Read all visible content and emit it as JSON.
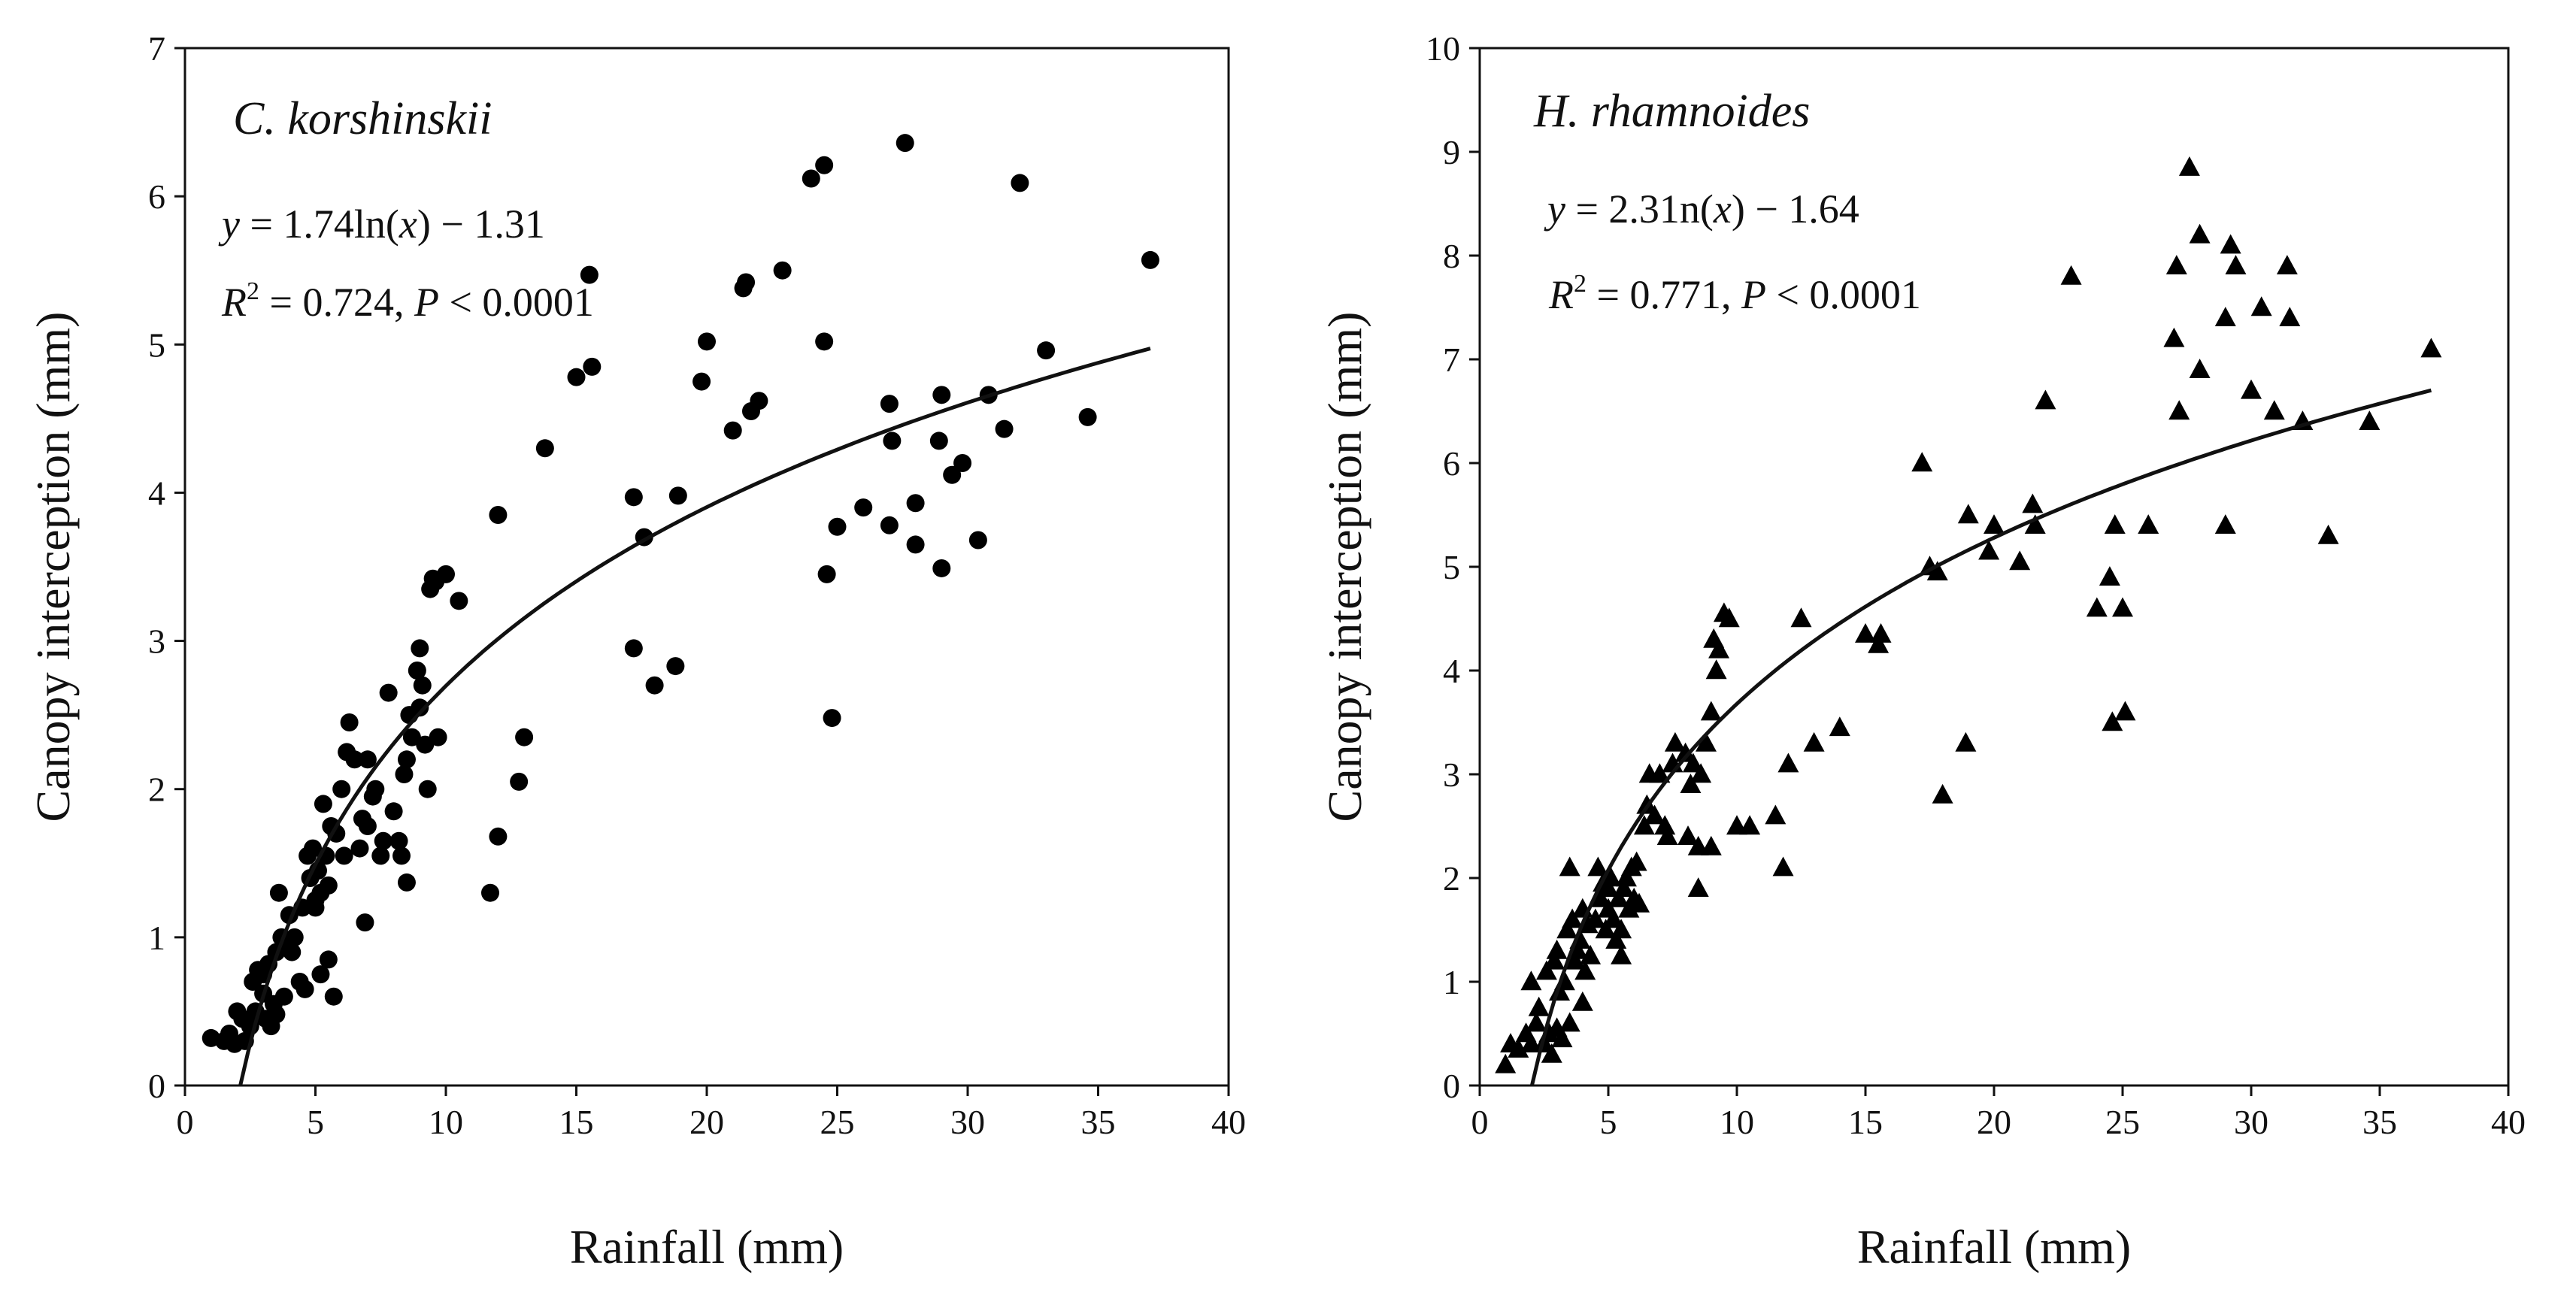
{
  "chart_data": [
    {
      "type": "scatter",
      "species": "C. korshinskii",
      "xlabel": "Rainfall (mm)",
      "ylabel": "Canopy interception (mm)",
      "xlim": [
        0,
        40
      ],
      "ylim": [
        0,
        7
      ],
      "xticks": [
        0,
        5,
        10,
        15,
        20,
        25,
        30,
        35,
        40
      ],
      "yticks": [
        0,
        1,
        2,
        3,
        4,
        5,
        6,
        7
      ],
      "marker": "circle",
      "equation": {
        "y": "y",
        "eq": "= 1.74ln(",
        "x": "x",
        "rest": ") − 1.31"
      },
      "stats": {
        "r": "R",
        "sup": "2",
        "val": " = 0.724, ",
        "p": "P",
        "pval": " < 0.0001"
      },
      "fit": {
        "a": 1.74,
        "b": -1.31,
        "xmin": 2.12,
        "xmax": 37
      },
      "points": [
        [
          1.0,
          0.32
        ],
        [
          1.5,
          0.3
        ],
        [
          1.7,
          0.35
        ],
        [
          1.9,
          0.28
        ],
        [
          2.0,
          0.5
        ],
        [
          2.2,
          0.45
        ],
        [
          2.3,
          0.3
        ],
        [
          2.5,
          0.4
        ],
        [
          2.6,
          0.7
        ],
        [
          2.7,
          0.5
        ],
        [
          2.8,
          0.78
        ],
        [
          3.0,
          0.62
        ],
        [
          3.0,
          0.75
        ],
        [
          3.1,
          0.45
        ],
        [
          3.2,
          0.82
        ],
        [
          3.3,
          0.4
        ],
        [
          3.4,
          0.55
        ],
        [
          3.5,
          0.9
        ],
        [
          3.5,
          0.48
        ],
        [
          3.6,
          1.3
        ],
        [
          3.7,
          1.0
        ],
        [
          3.8,
          0.6
        ],
        [
          3.9,
          0.95
        ],
        [
          4.0,
          1.15
        ],
        [
          4.1,
          0.9
        ],
        [
          4.2,
          1.0
        ],
        [
          4.4,
          0.7
        ],
        [
          4.5,
          1.2
        ],
        [
          4.6,
          0.65
        ],
        [
          4.7,
          1.55
        ],
        [
          4.8,
          1.4
        ],
        [
          4.9,
          1.6
        ],
        [
          5.0,
          1.25
        ],
        [
          5.0,
          1.2
        ],
        [
          5.1,
          1.45
        ],
        [
          5.2,
          0.75
        ],
        [
          5.2,
          1.3
        ],
        [
          5.3,
          1.9
        ],
        [
          5.4,
          1.55
        ],
        [
          5.5,
          0.85
        ],
        [
          5.5,
          1.35
        ],
        [
          5.6,
          1.75
        ],
        [
          5.7,
          0.6
        ],
        [
          5.8,
          1.7
        ],
        [
          6.0,
          2.0
        ],
        [
          6.1,
          1.55
        ],
        [
          6.2,
          2.25
        ],
        [
          6.3,
          2.45
        ],
        [
          6.5,
          2.2
        ],
        [
          6.7,
          1.6
        ],
        [
          6.8,
          1.8
        ],
        [
          6.9,
          1.1
        ],
        [
          7.0,
          2.2
        ],
        [
          7.0,
          1.75
        ],
        [
          7.2,
          1.95
        ],
        [
          7.3,
          2.0
        ],
        [
          7.5,
          1.55
        ],
        [
          7.6,
          1.65
        ],
        [
          7.8,
          2.65
        ],
        [
          8.0,
          1.85
        ],
        [
          8.2,
          1.65
        ],
        [
          8.3,
          1.55
        ],
        [
          8.4,
          2.1
        ],
        [
          8.5,
          1.37
        ],
        [
          8.5,
          2.2
        ],
        [
          8.6,
          2.5
        ],
        [
          8.7,
          2.35
        ],
        [
          8.9,
          2.8
        ],
        [
          9.0,
          2.55
        ],
        [
          9.0,
          2.95
        ],
        [
          9.1,
          2.7
        ],
        [
          9.2,
          2.3
        ],
        [
          9.3,
          2.0
        ],
        [
          9.4,
          3.35
        ],
        [
          9.5,
          3.42
        ],
        [
          9.6,
          3.4
        ],
        [
          9.7,
          2.35
        ],
        [
          10.0,
          3.45
        ],
        [
          10.5,
          3.27
        ],
        [
          11.7,
          1.3
        ],
        [
          12.0,
          1.68
        ],
        [
          12.0,
          3.85
        ],
        [
          12.8,
          2.05
        ],
        [
          13.0,
          2.35
        ],
        [
          13.8,
          4.3
        ],
        [
          15.0,
          4.78
        ],
        [
          15.5,
          5.47
        ],
        [
          15.6,
          4.85
        ],
        [
          17.2,
          2.95
        ],
        [
          17.2,
          3.97
        ],
        [
          17.6,
          3.7
        ],
        [
          18.0,
          2.7
        ],
        [
          18.8,
          2.83
        ],
        [
          18.9,
          3.98
        ],
        [
          19.8,
          4.75
        ],
        [
          20.0,
          5.02
        ],
        [
          21.0,
          4.42
        ],
        [
          21.4,
          5.38
        ],
        [
          21.5,
          5.42
        ],
        [
          21.7,
          4.55
        ],
        [
          22.0,
          4.62
        ],
        [
          22.9,
          5.5
        ],
        [
          24.0,
          6.12
        ],
        [
          24.5,
          6.21
        ],
        [
          24.5,
          5.02
        ],
        [
          24.6,
          3.45
        ],
        [
          24.8,
          2.48
        ],
        [
          25.0,
          3.77
        ],
        [
          26.0,
          3.9
        ],
        [
          27.0,
          3.78
        ],
        [
          27.0,
          4.6
        ],
        [
          27.1,
          4.35
        ],
        [
          27.6,
          6.36
        ],
        [
          28.0,
          3.65
        ],
        [
          28.0,
          3.93
        ],
        [
          28.9,
          4.35
        ],
        [
          29.0,
          3.49
        ],
        [
          29.0,
          4.66
        ],
        [
          29.4,
          4.12
        ],
        [
          29.8,
          4.2
        ],
        [
          30.4,
          3.68
        ],
        [
          30.8,
          4.66
        ],
        [
          31.4,
          4.43
        ],
        [
          32.0,
          6.09
        ],
        [
          33.0,
          4.96
        ],
        [
          34.6,
          4.51
        ],
        [
          37.0,
          5.57
        ]
      ]
    },
    {
      "type": "scatter",
      "species": "H. rhamnoides",
      "xlabel": "Rainfall (mm)",
      "ylabel": "Canopy interception (mm)",
      "xlim": [
        0,
        40
      ],
      "ylim": [
        0,
        10
      ],
      "xticks": [
        0,
        5,
        10,
        15,
        20,
        25,
        30,
        35,
        40
      ],
      "yticks": [
        0,
        1,
        2,
        3,
        4,
        5,
        6,
        7,
        8,
        9,
        10
      ],
      "marker": "triangle",
      "equation": {
        "y": "y",
        "eq": "= 2.31n(",
        "x": "x",
        "rest": ") − 1.64"
      },
      "stats": {
        "r": "R",
        "sup": "2",
        "val": " = 0.771, ",
        "p": "P",
        "pval": " < 0.0001"
      },
      "fit": {
        "a": 2.31,
        "b": -1.64,
        "xmin": 2.03,
        "xmax": 37
      },
      "points": [
        [
          1.0,
          0.2
        ],
        [
          1.2,
          0.4
        ],
        [
          1.5,
          0.35
        ],
        [
          1.8,
          0.5
        ],
        [
          2.0,
          0.4
        ],
        [
          2.0,
          1.0
        ],
        [
          2.2,
          0.6
        ],
        [
          2.3,
          0.75
        ],
        [
          2.5,
          0.4
        ],
        [
          2.6,
          1.1
        ],
        [
          2.7,
          0.5
        ],
        [
          2.8,
          0.3
        ],
        [
          2.9,
          1.2
        ],
        [
          3.0,
          0.55
        ],
        [
          3.0,
          1.3
        ],
        [
          3.1,
          0.9
        ],
        [
          3.2,
          0.45
        ],
        [
          3.3,
          1.0
        ],
        [
          3.4,
          1.5
        ],
        [
          3.5,
          0.6
        ],
        [
          3.5,
          2.1
        ],
        [
          3.6,
          1.6
        ],
        [
          3.7,
          1.2
        ],
        [
          3.8,
          1.3
        ],
        [
          3.9,
          1.4
        ],
        [
          4.0,
          0.8
        ],
        [
          4.0,
          1.7
        ],
        [
          4.1,
          1.1
        ],
        [
          4.2,
          1.55
        ],
        [
          4.3,
          1.25
        ],
        [
          4.5,
          1.6
        ],
        [
          4.6,
          2.1
        ],
        [
          4.7,
          1.8
        ],
        [
          4.8,
          1.95
        ],
        [
          4.9,
          1.5
        ],
        [
          5.0,
          1.9
        ],
        [
          5.0,
          1.7
        ],
        [
          5.1,
          2.0
        ],
        [
          5.2,
          1.6
        ],
        [
          5.3,
          1.4
        ],
        [
          5.4,
          1.8
        ],
        [
          5.5,
          1.25
        ],
        [
          5.5,
          1.5
        ],
        [
          5.6,
          1.9
        ],
        [
          5.7,
          2.0
        ],
        [
          5.8,
          1.7
        ],
        [
          5.9,
          2.1
        ],
        [
          6.0,
          1.8
        ],
        [
          6.1,
          2.15
        ],
        [
          6.2,
          1.75
        ],
        [
          6.4,
          2.5
        ],
        [
          6.5,
          2.7
        ],
        [
          6.6,
          3.0
        ],
        [
          6.8,
          2.6
        ],
        [
          7.0,
          3.0
        ],
        [
          7.2,
          2.5
        ],
        [
          7.3,
          2.4
        ],
        [
          7.5,
          3.1
        ],
        [
          7.6,
          3.3
        ],
        [
          8.0,
          3.2
        ],
        [
          8.1,
          2.4
        ],
        [
          8.2,
          2.9
        ],
        [
          8.3,
          3.1
        ],
        [
          8.5,
          2.3
        ],
        [
          8.5,
          1.9
        ],
        [
          8.6,
          3.0
        ],
        [
          8.8,
          3.3
        ],
        [
          9.0,
          3.6
        ],
        [
          9.0,
          2.3
        ],
        [
          9.1,
          4.3
        ],
        [
          9.2,
          4.0
        ],
        [
          9.3,
          4.2
        ],
        [
          9.5,
          4.55
        ],
        [
          9.7,
          4.5
        ],
        [
          10.0,
          2.5
        ],
        [
          10.5,
          2.5
        ],
        [
          11.5,
          2.6
        ],
        [
          11.8,
          2.1
        ],
        [
          12.0,
          3.1
        ],
        [
          12.5,
          4.5
        ],
        [
          13.0,
          3.3
        ],
        [
          14.0,
          3.45
        ],
        [
          15.0,
          4.35
        ],
        [
          15.5,
          4.25
        ],
        [
          15.6,
          4.35
        ],
        [
          17.2,
          6.0
        ],
        [
          17.5,
          5.0
        ],
        [
          17.8,
          4.95
        ],
        [
          18.0,
          2.8
        ],
        [
          18.9,
          3.3
        ],
        [
          19.0,
          5.5
        ],
        [
          19.8,
          5.15
        ],
        [
          20.0,
          5.4
        ],
        [
          21.0,
          5.05
        ],
        [
          21.5,
          5.6
        ],
        [
          21.6,
          5.4
        ],
        [
          22.0,
          6.6
        ],
        [
          23.0,
          7.8
        ],
        [
          24.0,
          4.6
        ],
        [
          24.5,
          4.9
        ],
        [
          24.6,
          3.5
        ],
        [
          24.7,
          5.4
        ],
        [
          25.0,
          4.6
        ],
        [
          25.1,
          3.6
        ],
        [
          26.0,
          5.4
        ],
        [
          27.0,
          7.2
        ],
        [
          27.1,
          7.9
        ],
        [
          27.2,
          6.5
        ],
        [
          27.6,
          8.85
        ],
        [
          28.0,
          8.2
        ],
        [
          28.0,
          6.9
        ],
        [
          29.0,
          7.4
        ],
        [
          29.0,
          5.4
        ],
        [
          29.2,
          8.1
        ],
        [
          29.4,
          7.9
        ],
        [
          30.0,
          6.7
        ],
        [
          30.4,
          7.5
        ],
        [
          30.9,
          6.5
        ],
        [
          31.4,
          7.9
        ],
        [
          31.5,
          7.4
        ],
        [
          32.0,
          6.4
        ],
        [
          33.0,
          5.3
        ],
        [
          34.6,
          6.4
        ],
        [
          37.0,
          7.1
        ]
      ]
    }
  ]
}
